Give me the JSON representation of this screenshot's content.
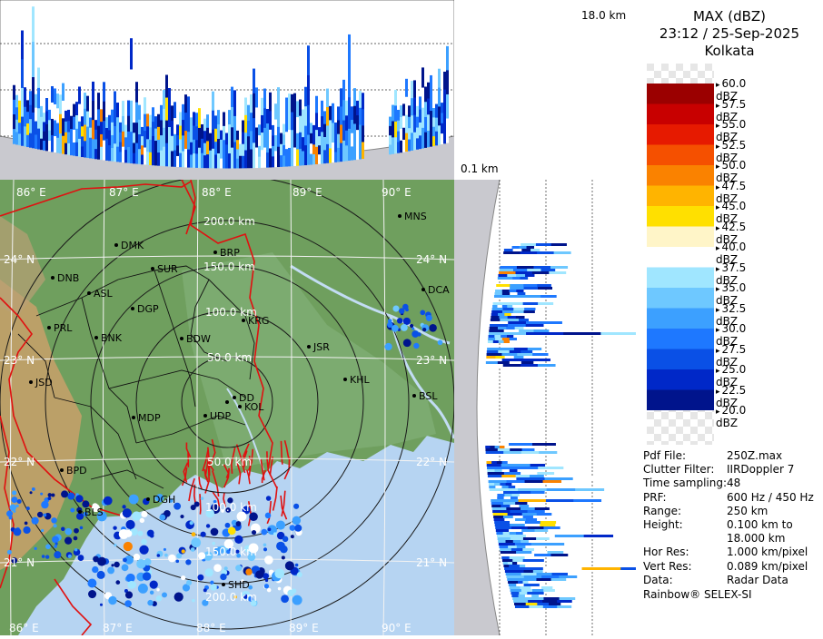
{
  "header": {
    "product": "MAX (dBZ)",
    "datetime": "23:12 / 25-Sep-2025",
    "site": "Kolkata"
  },
  "profile": {
    "top_height_label": "18.0 km",
    "bottom_height_label": "0.1 km"
  },
  "map": {
    "lon_labels": [
      "86° E",
      "87° E",
      "88° E",
      "89° E",
      "90° E"
    ],
    "lat_labels_left": [
      "24° N",
      "23° N",
      "22° N",
      "21° N"
    ],
    "lat_labels_right": [
      "24° N",
      "23° N",
      "22° N",
      "21° N"
    ],
    "range_labels": [
      "50.0 km",
      "100.0 km",
      "150.0 km",
      "200.0 km"
    ],
    "range_labels_south": [
      "50.0 km",
      "100.0 km",
      "150.0 km",
      "200.0 km"
    ],
    "cities": [
      {
        "name": "MNS"
      },
      {
        "name": "DMK"
      },
      {
        "name": "BRP"
      },
      {
        "name": "DNB"
      },
      {
        "name": "SUR"
      },
      {
        "name": "ASL"
      },
      {
        "name": "DGP"
      },
      {
        "name": "DCA"
      },
      {
        "name": "KRG"
      },
      {
        "name": "PRL"
      },
      {
        "name": "BNK"
      },
      {
        "name": "BDW"
      },
      {
        "name": "JSR"
      },
      {
        "name": "JSD"
      },
      {
        "name": "KHL"
      },
      {
        "name": "BSL"
      },
      {
        "name": "DD"
      },
      {
        "name": "KOL"
      },
      {
        "name": "UDP"
      },
      {
        "name": "MDP"
      },
      {
        "name": "BPD"
      },
      {
        "name": "DGH"
      },
      {
        "name": "BLS"
      },
      {
        "name": "SHD"
      }
    ],
    "colors": {
      "land_green": "#6f9f5e",
      "land_lowland": "#7fae74",
      "plateau": "#c9a06a",
      "sea": "#b6d4f2",
      "border": "#e01010"
    }
  },
  "legend": {
    "scale": [
      {
        "label": "60.0 dBZ",
        "color": ""
      },
      {
        "label": "57.5 dBZ",
        "color": "#9b0000"
      },
      {
        "label": "55.0 dBZ",
        "color": "#c80000"
      },
      {
        "label": "52.5 dBZ",
        "color": "#e61a00"
      },
      {
        "label": "50.0 dBZ",
        "color": "#f55000"
      },
      {
        "label": "47.5 dBZ",
        "color": "#fa8200"
      },
      {
        "label": "45.0 dBZ",
        "color": "#ffb400"
      },
      {
        "label": "42.5 dBZ",
        "color": "#ffe000"
      },
      {
        "label": "40.0 dBZ",
        "color": "#fff5c8"
      },
      {
        "label": "37.5 dBZ",
        "color": "#ffffff"
      },
      {
        "label": "35.0 dBZ",
        "color": "#a0e6ff"
      },
      {
        "label": "32.5 dBZ",
        "color": "#6ec8ff"
      },
      {
        "label": "30.0 dBZ",
        "color": "#3ca0ff"
      },
      {
        "label": "27.5 dBZ",
        "color": "#1e78ff"
      },
      {
        "label": "25.0 dBZ",
        "color": "#0a50e6"
      },
      {
        "label": "22.5 dBZ",
        "color": "#0028c8"
      },
      {
        "label": "20.0 dBZ",
        "color": "#00148c"
      }
    ]
  },
  "metadata": [
    {
      "key": "Pdf File:",
      "value": "250Z.max"
    },
    {
      "key": "Clutter Filter:",
      "value": "IIRDoppler 7"
    },
    {
      "key": "Time sampling:",
      "value": "48"
    },
    {
      "key": "PRF:",
      "value": "600 Hz / 450 Hz"
    },
    {
      "key": "Range:",
      "value": "250 km"
    },
    {
      "key": "Height:",
      "value": "0.100 km to"
    },
    {
      "key": "",
      "value": "18.000 km"
    },
    {
      "key": "Hor Res:",
      "value": "1.000 km/pixel"
    },
    {
      "key": "Vert Res:",
      "value": "0.089 km/pixel"
    },
    {
      "key": "Data:",
      "value": "Radar Data"
    }
  ],
  "footer": "Rainbow® SELEX-SI"
}
